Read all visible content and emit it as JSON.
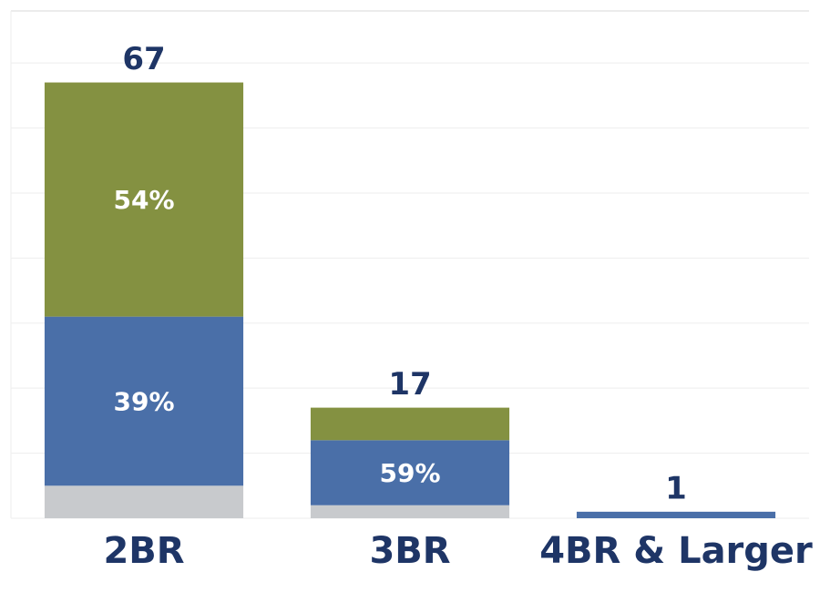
{
  "chart_data": {
    "type": "stacked_bar",
    "categories": [
      "2BR",
      "3BR",
      "4BR & Larger"
    ],
    "series": [
      {
        "color": "#c8cacd",
        "values": [
          5,
          2,
          0
        ]
      },
      {
        "color": "#4a6fa8",
        "values": [
          26,
          10,
          1
        ],
        "value_labels": [
          "39%",
          "59%",
          null
        ]
      },
      {
        "color": "#849141",
        "values": [
          36,
          5,
          0
        ],
        "value_labels": [
          "54%",
          null,
          null
        ]
      }
    ],
    "totals": [
      67,
      17,
      1
    ],
    "ylim": [
      0,
      78
    ],
    "yticks": [
      0,
      10,
      20,
      30,
      40,
      50,
      60,
      70
    ],
    "grid": true
  }
}
